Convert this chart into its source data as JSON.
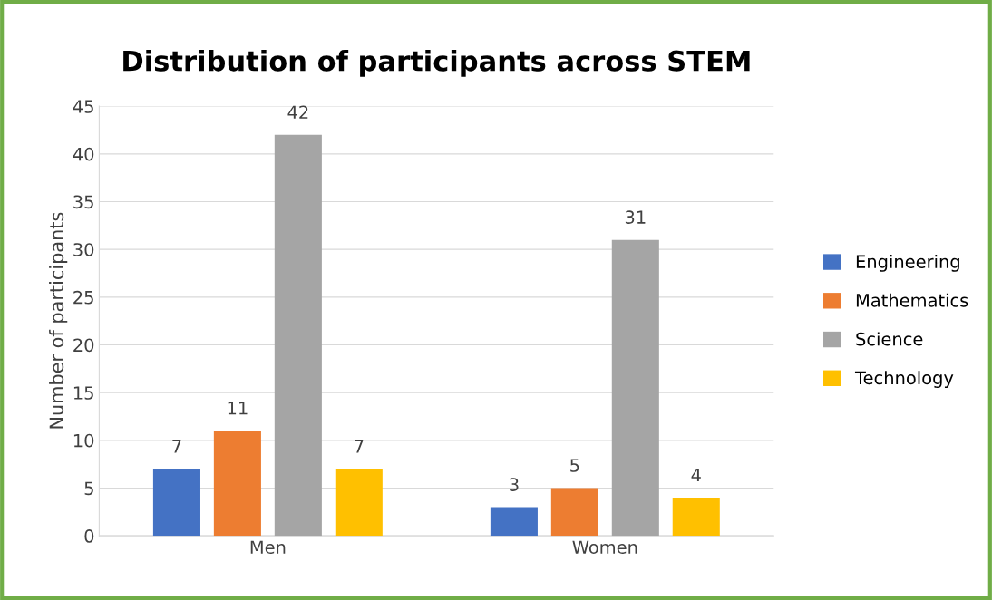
{
  "chart_data": {
    "type": "bar",
    "title": "Distribution of participants across STEM",
    "ylabel": "Number of participants",
    "categories": [
      "Men",
      "Women"
    ],
    "series": [
      {
        "name": "Engineering",
        "color": "#4472c4",
        "values": [
          7,
          3
        ]
      },
      {
        "name": "Mathematics",
        "color": "#ed7d31",
        "values": [
          11,
          5
        ]
      },
      {
        "name": "Science",
        "color": "#a5a5a5",
        "values": [
          42,
          31
        ]
      },
      {
        "name": "Technology",
        "color": "#ffc000",
        "values": [
          7,
          4
        ]
      }
    ],
    "ylim": [
      0,
      45
    ],
    "yticks": [
      0,
      5,
      10,
      15,
      20,
      25,
      30,
      35,
      40,
      45
    ],
    "grid": "y",
    "legend": "right",
    "data_labels": true
  }
}
